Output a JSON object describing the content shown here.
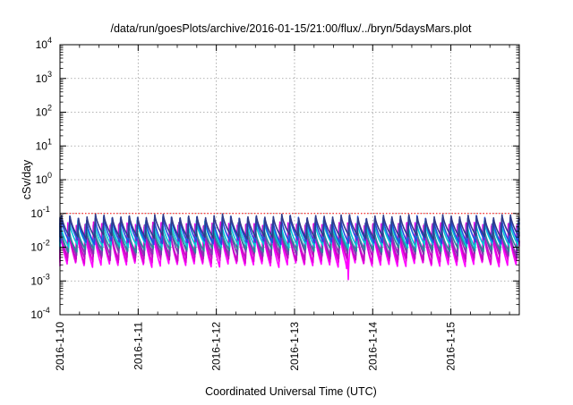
{
  "chart_data": {
    "type": "line",
    "title": "/data/run/goesPlots/archive/2016-01-15/21:00/flux/../bryn/5daysMars.plot",
    "xlabel": "Coordinated Universal Time (UTC)",
    "ylabel": "cSv/day",
    "yscale": "log",
    "ylim": [
      0.0001,
      10000
    ],
    "y_ticks": [
      {
        "value": 0.0001,
        "base": "10",
        "exp": "-4"
      },
      {
        "value": 0.001,
        "base": "10",
        "exp": "-3"
      },
      {
        "value": 0.01,
        "base": "10",
        "exp": "-2"
      },
      {
        "value": 0.1,
        "base": "10",
        "exp": "-1"
      },
      {
        "value": 1,
        "base": "10",
        "exp": "0"
      },
      {
        "value": 10,
        "base": "10",
        "exp": "1"
      },
      {
        "value": 100,
        "base": "10",
        "exp": "2"
      },
      {
        "value": 1000,
        "base": "10",
        "exp": "3"
      },
      {
        "value": 10000,
        "base": "10",
        "exp": "4"
      }
    ],
    "xlim": [
      "2016-01-10T00:00",
      "2016-01-15T21:00"
    ],
    "x_ticks": [
      "2016-1-10",
      "2016-1-11",
      "2016-1-12",
      "2016-1-13",
      "2016-1-14",
      "2016-1-15"
    ],
    "x_tick_dates": [
      "2016-01-10T00:00",
      "2016-01-11T00:00",
      "2016-01-12T00:00",
      "2016-01-13T00:00",
      "2016-01-14T00:00",
      "2016-01-15T00:00"
    ],
    "grid": true,
    "legend": "none",
    "peak_interval_hours": 2.6,
    "reference_line": {
      "value": 0.1,
      "color": "#ff0000",
      "style": "dotted"
    },
    "series": [
      {
        "color": "#ff00ff",
        "peak": 0.06,
        "trough": 0.0028
      },
      {
        "color": "#e000d8",
        "peak": 0.05,
        "trough": 0.0036
      },
      {
        "color": "#c010c0",
        "peak": 0.045,
        "trough": 0.0045
      },
      {
        "color": "#7a3cb0",
        "peak": 0.05,
        "trough": 0.006
      },
      {
        "color": "#2a8a9a",
        "peak": 0.04,
        "trough": 0.008
      },
      {
        "color": "#00c8d8",
        "peak": 0.06,
        "trough": 0.011
      },
      {
        "color": "#2050e0",
        "peak": 0.085,
        "trough": 0.014
      },
      {
        "color": "#303a8a",
        "peak": 0.095,
        "trough": 0.02
      }
    ],
    "dip": {
      "at": "2016-01-13T16:30",
      "value": 0.0011
    }
  }
}
